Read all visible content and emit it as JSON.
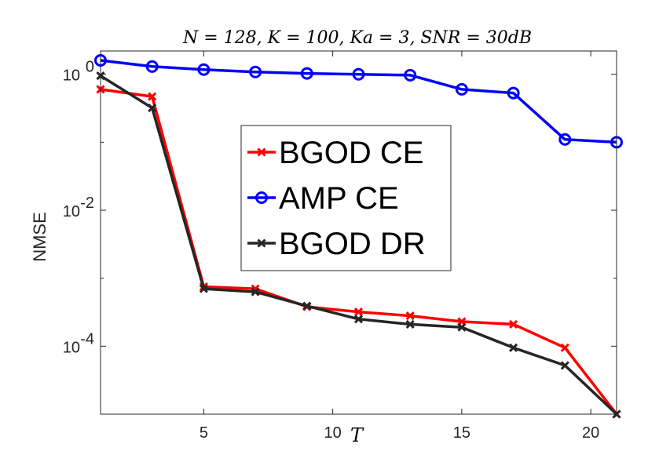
{
  "chart_data": {
    "type": "line",
    "title": "N = 128, K = 100, Ka = 3, SNR = 30dB",
    "xlabel": "T",
    "ylabel": "NMSE",
    "yscale": "log",
    "xlim": [
      1,
      21
    ],
    "ylim": [
      1e-05,
      2.2
    ],
    "xticks": [
      5,
      10,
      15,
      20
    ],
    "yticks": [
      {
        "value": 1,
        "base": "10",
        "exp": "0"
      },
      {
        "value": 0.01,
        "base": "10",
        "exp": "-2"
      },
      {
        "value": 0.0001,
        "base": "10",
        "exp": "-4"
      }
    ],
    "grid": false,
    "legend_position": "center",
    "series": [
      {
        "name": "BGOD CE",
        "color": "#ff0000",
        "marker": "x",
        "x": [
          1,
          3,
          5,
          7,
          9,
          11,
          13,
          15,
          17,
          19,
          21
        ],
        "y": [
          0.6,
          0.47,
          0.00075,
          0.0007,
          0.00038,
          0.00032,
          0.00028,
          0.00023,
          0.00021,
          9.5e-05,
          1e-05
        ]
      },
      {
        "name": "AMP CE",
        "color": "#0000ff",
        "marker": "o",
        "x": [
          1,
          3,
          5,
          7,
          9,
          11,
          13,
          15,
          17,
          19,
          21
        ],
        "y": [
          1.6,
          1.3,
          1.17,
          1.08,
          1.03,
          1.0,
          0.97,
          0.6,
          0.53,
          0.11,
          0.1
        ]
      },
      {
        "name": "BGOD DR",
        "color": "#262626",
        "marker": "x",
        "x": [
          1,
          3,
          5,
          7,
          9,
          11,
          13,
          15,
          17,
          19,
          21
        ],
        "y": [
          0.95,
          0.32,
          0.0007,
          0.00063,
          0.00039,
          0.00025,
          0.00021,
          0.00019,
          9.5e-05,
          5.2e-05,
          1e-05
        ]
      }
    ]
  }
}
